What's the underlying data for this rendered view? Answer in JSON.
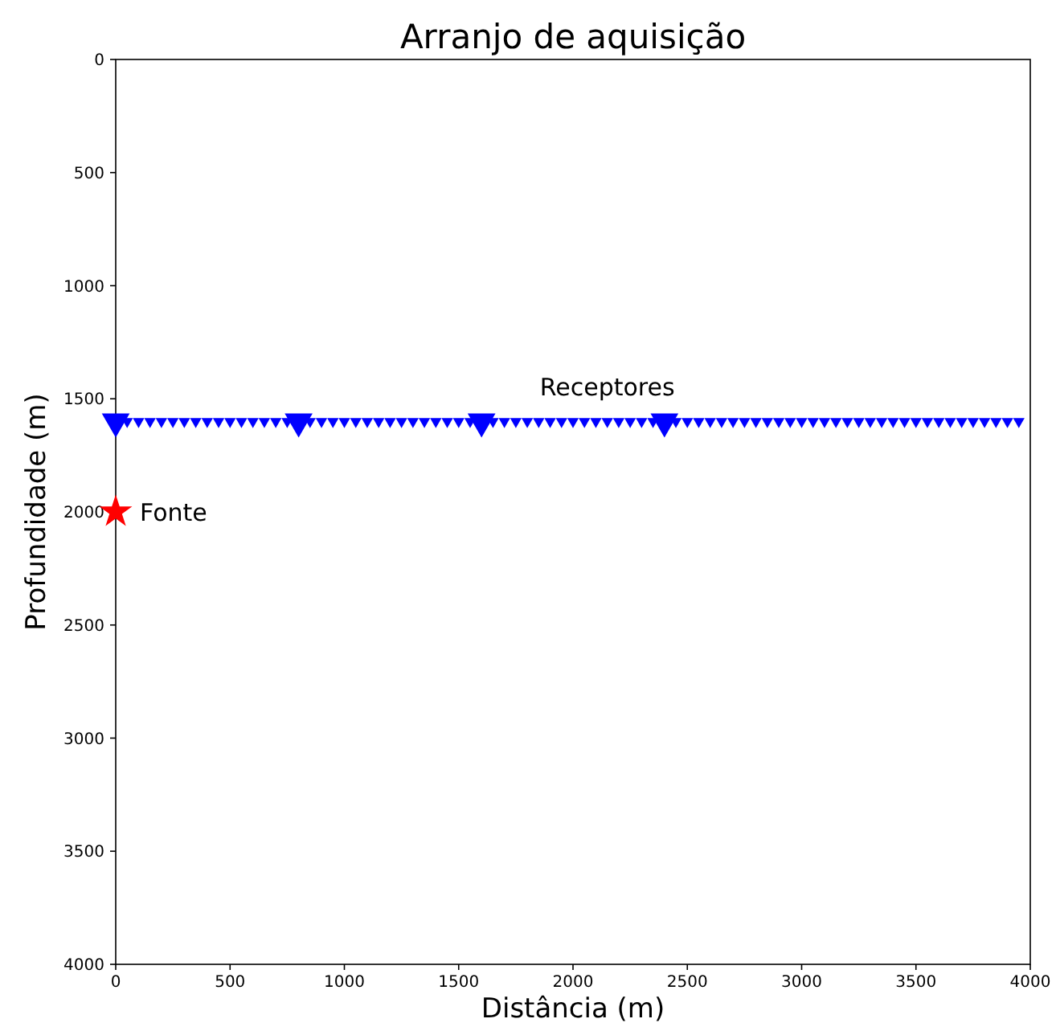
{
  "chart_data": {
    "type": "scatter",
    "title": "Arranjo de aquisição",
    "xlabel": "Distância (m)",
    "ylabel": "Profundidade (m)",
    "xlim": [
      0,
      4000
    ],
    "xticks": [
      0,
      500,
      1000,
      1500,
      2000,
      2500,
      3000,
      3500,
      4000
    ],
    "ylim": [
      4000,
      0
    ],
    "yticks": [
      0,
      500,
      1000,
      1500,
      2000,
      2500,
      3000,
      3500,
      4000
    ],
    "grid": false,
    "series": [
      {
        "name": "Receptores",
        "marker": "triangle",
        "color": "#0000ff",
        "x": [
          0,
          50,
          100,
          150,
          200,
          250,
          300,
          350,
          400,
          450,
          500,
          550,
          600,
          650,
          700,
          750,
          800,
          850,
          900,
          950,
          1000,
          1050,
          1100,
          1150,
          1200,
          1250,
          1300,
          1350,
          1400,
          1450,
          1500,
          1550,
          1600,
          1650,
          1700,
          1750,
          1800,
          1850,
          1900,
          1950,
          2000,
          2050,
          2100,
          2150,
          2200,
          2250,
          2300,
          2350,
          2400,
          2450,
          2500,
          2550,
          2600,
          2650,
          2700,
          2750,
          2800,
          2850,
          2900,
          2950,
          3000,
          3050,
          3100,
          3150,
          3200,
          3250,
          3300,
          3350,
          3400,
          3450,
          3500,
          3550,
          3600,
          3650,
          3700,
          3750,
          3800,
          3850,
          3900,
          3950
        ],
        "values": [
          1600,
          1600,
          1600,
          1600,
          1600,
          1600,
          1600,
          1600,
          1600,
          1600,
          1600,
          1600,
          1600,
          1600,
          1600,
          1600,
          1600,
          1600,
          1600,
          1600,
          1600,
          1600,
          1600,
          1600,
          1600,
          1600,
          1600,
          1600,
          1600,
          1600,
          1600,
          1600,
          1600,
          1600,
          1600,
          1600,
          1600,
          1600,
          1600,
          1600,
          1600,
          1600,
          1600,
          1600,
          1600,
          1600,
          1600,
          1600,
          1600,
          1600,
          1600,
          1600,
          1600,
          1600,
          1600,
          1600,
          1600,
          1600,
          1600,
          1600,
          1600,
          1600,
          1600,
          1600,
          1600,
          1600,
          1600,
          1600,
          1600,
          1600,
          1600,
          1600,
          1600,
          1600,
          1600,
          1600,
          1600,
          1600,
          1600,
          1600
        ],
        "sizes": [
          1,
          0.17,
          0.17,
          0.17,
          0.17,
          0.17,
          0.17,
          0.17,
          0.17,
          0.17,
          0.17,
          0.17,
          0.17,
          0.17,
          0.17,
          0.17,
          1,
          0.17,
          0.17,
          0.17,
          0.17,
          0.17,
          0.17,
          0.17,
          0.17,
          0.17,
          0.17,
          0.17,
          0.17,
          0.17,
          0.17,
          0.17,
          1,
          0.17,
          0.17,
          0.17,
          0.17,
          0.17,
          0.17,
          0.17,
          0.17,
          0.17,
          0.17,
          0.17,
          0.17,
          0.17,
          0.17,
          0.17,
          1,
          0.17,
          0.17,
          0.17,
          0.17,
          0.17,
          0.17,
          0.17,
          0.17,
          0.17,
          0.17,
          0.17,
          0.17,
          0.17,
          0.17,
          0.17,
          0.17,
          0.17,
          0.17,
          0.17,
          0.17,
          0.17,
          0.17,
          0.17,
          0.17,
          0.17,
          0.17,
          0.17,
          0.17,
          0.17,
          0.17,
          0.17
        ]
      },
      {
        "name": "Fonte",
        "marker": "star",
        "color": "#ff0000",
        "x": [
          0
        ],
        "values": [
          2000
        ]
      }
    ]
  }
}
